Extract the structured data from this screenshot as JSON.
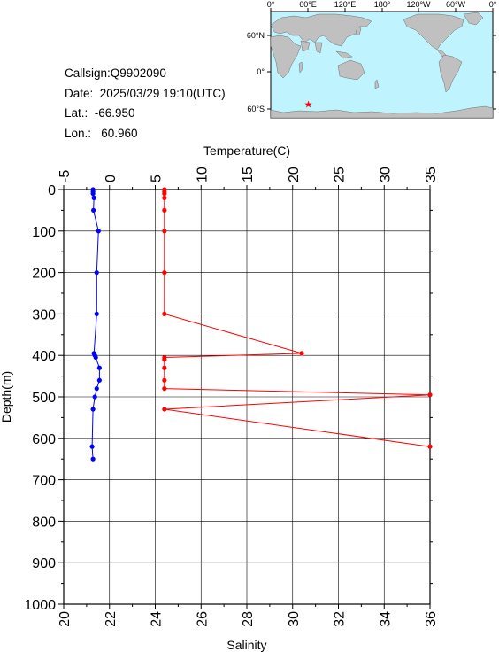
{
  "info": {
    "callsign": "Callsign:Q9902090",
    "date": "Date:  2025/03/29 19:10(UTC)",
    "lat": "Lat.:  -66.950",
    "lon": "Lon.:   60.960"
  },
  "map": {
    "lon_labels": [
      "0°",
      "60°E",
      "120°E",
      "180°",
      "120°W",
      "60°W",
      "0°"
    ],
    "lat_labels": [
      "60°N",
      "0°",
      "60°S"
    ],
    "station": {
      "lat": -66.95,
      "lon": 60.96
    },
    "colors": {
      "ocean": "#bff4ff",
      "land": "#c0c0c0",
      "marker": "#ff0000"
    }
  },
  "chart_data": {
    "type": "line",
    "title": "",
    "ylabel": "Depth(m)",
    "top_xlabel": "Temperature(C)",
    "bottom_xlabel": "Salinity",
    "ylim": [
      0,
      1000
    ],
    "temp_lim": [
      -5,
      35
    ],
    "sal_lim": [
      20,
      36
    ],
    "y_ticks": [
      "0",
      "100",
      "200",
      "300",
      "400",
      "500",
      "600",
      "700",
      "800",
      "900",
      "1000"
    ],
    "temp_ticks": [
      "-5",
      "0",
      "5",
      "10",
      "15",
      "20",
      "25",
      "30",
      "35"
    ],
    "sal_ticks": [
      "20",
      "22",
      "24",
      "26",
      "28",
      "30",
      "32",
      "34",
      "36"
    ],
    "grid": true,
    "series": [
      {
        "axis": "temperature",
        "color": "#0000ff",
        "depth": [
          0,
          5,
          10,
          20,
          50,
          100,
          200,
          300,
          395,
          400,
          405,
          430,
          460,
          480,
          500,
          530,
          620,
          650
        ],
        "values": [
          -1.8,
          -1.8,
          -1.8,
          -1.7,
          -1.75,
          -1.2,
          -1.4,
          -1.4,
          -1.7,
          -1.6,
          -1.5,
          -1.1,
          -1.1,
          -1.4,
          -1.6,
          -1.8,
          -1.9,
          -1.8
        ]
      },
      {
        "axis": "salinity",
        "color": "#ff0000",
        "depth": [
          0,
          5,
          10,
          20,
          50,
          100,
          200,
          300,
          395,
          405,
          410,
          430,
          460,
          480,
          495,
          530,
          620
        ],
        "values": [
          24.4,
          24.4,
          24.4,
          24.4,
          24.4,
          24.4,
          24.4,
          24.4,
          30.4,
          24.4,
          24.4,
          24.4,
          24.4,
          24.4,
          36.0,
          24.4,
          36.0
        ]
      }
    ]
  }
}
